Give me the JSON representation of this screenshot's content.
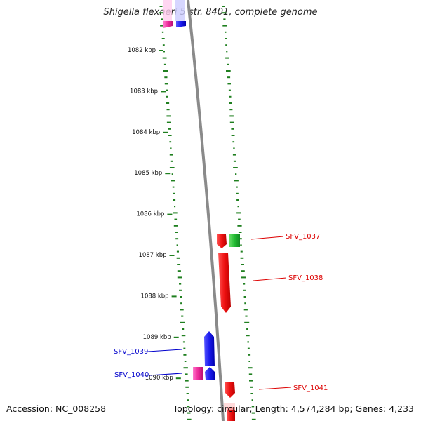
{
  "title": "Shigella flexneri 5 str. 8401, complete genome",
  "accession": "Accession: NC_008258",
  "stats": "Topology: circular; Length: 4,574,284 bp; Genes: 4,233",
  "colors": {
    "backbone": "#8a8a8a",
    "gc_tick": "#1f7f1f",
    "forward": "#ee1111",
    "reverse": "#1a1aee",
    "pink": "#ee2c9a",
    "green": "#22bb33"
  },
  "ticks": [
    {
      "label": "1082 kbp"
    },
    {
      "label": "1083 kbp"
    },
    {
      "label": "1084 kbp"
    },
    {
      "label": "1085 kbp"
    },
    {
      "label": "1086 kbp"
    },
    {
      "label": "1087 kbp"
    },
    {
      "label": "1088 kbp"
    },
    {
      "label": "1089 kbp"
    },
    {
      "label": "1090 kbp"
    }
  ],
  "gene_labels": [
    {
      "name": "SFV_1037",
      "color": "#dd0000"
    },
    {
      "name": "SFV_1038",
      "color": "#dd0000"
    },
    {
      "name": "SFV_1039",
      "color": "#0000cc"
    },
    {
      "name": "SFV_1040",
      "color": "#0000cc"
    },
    {
      "name": "SFV_1041",
      "color": "#dd0000"
    }
  ]
}
